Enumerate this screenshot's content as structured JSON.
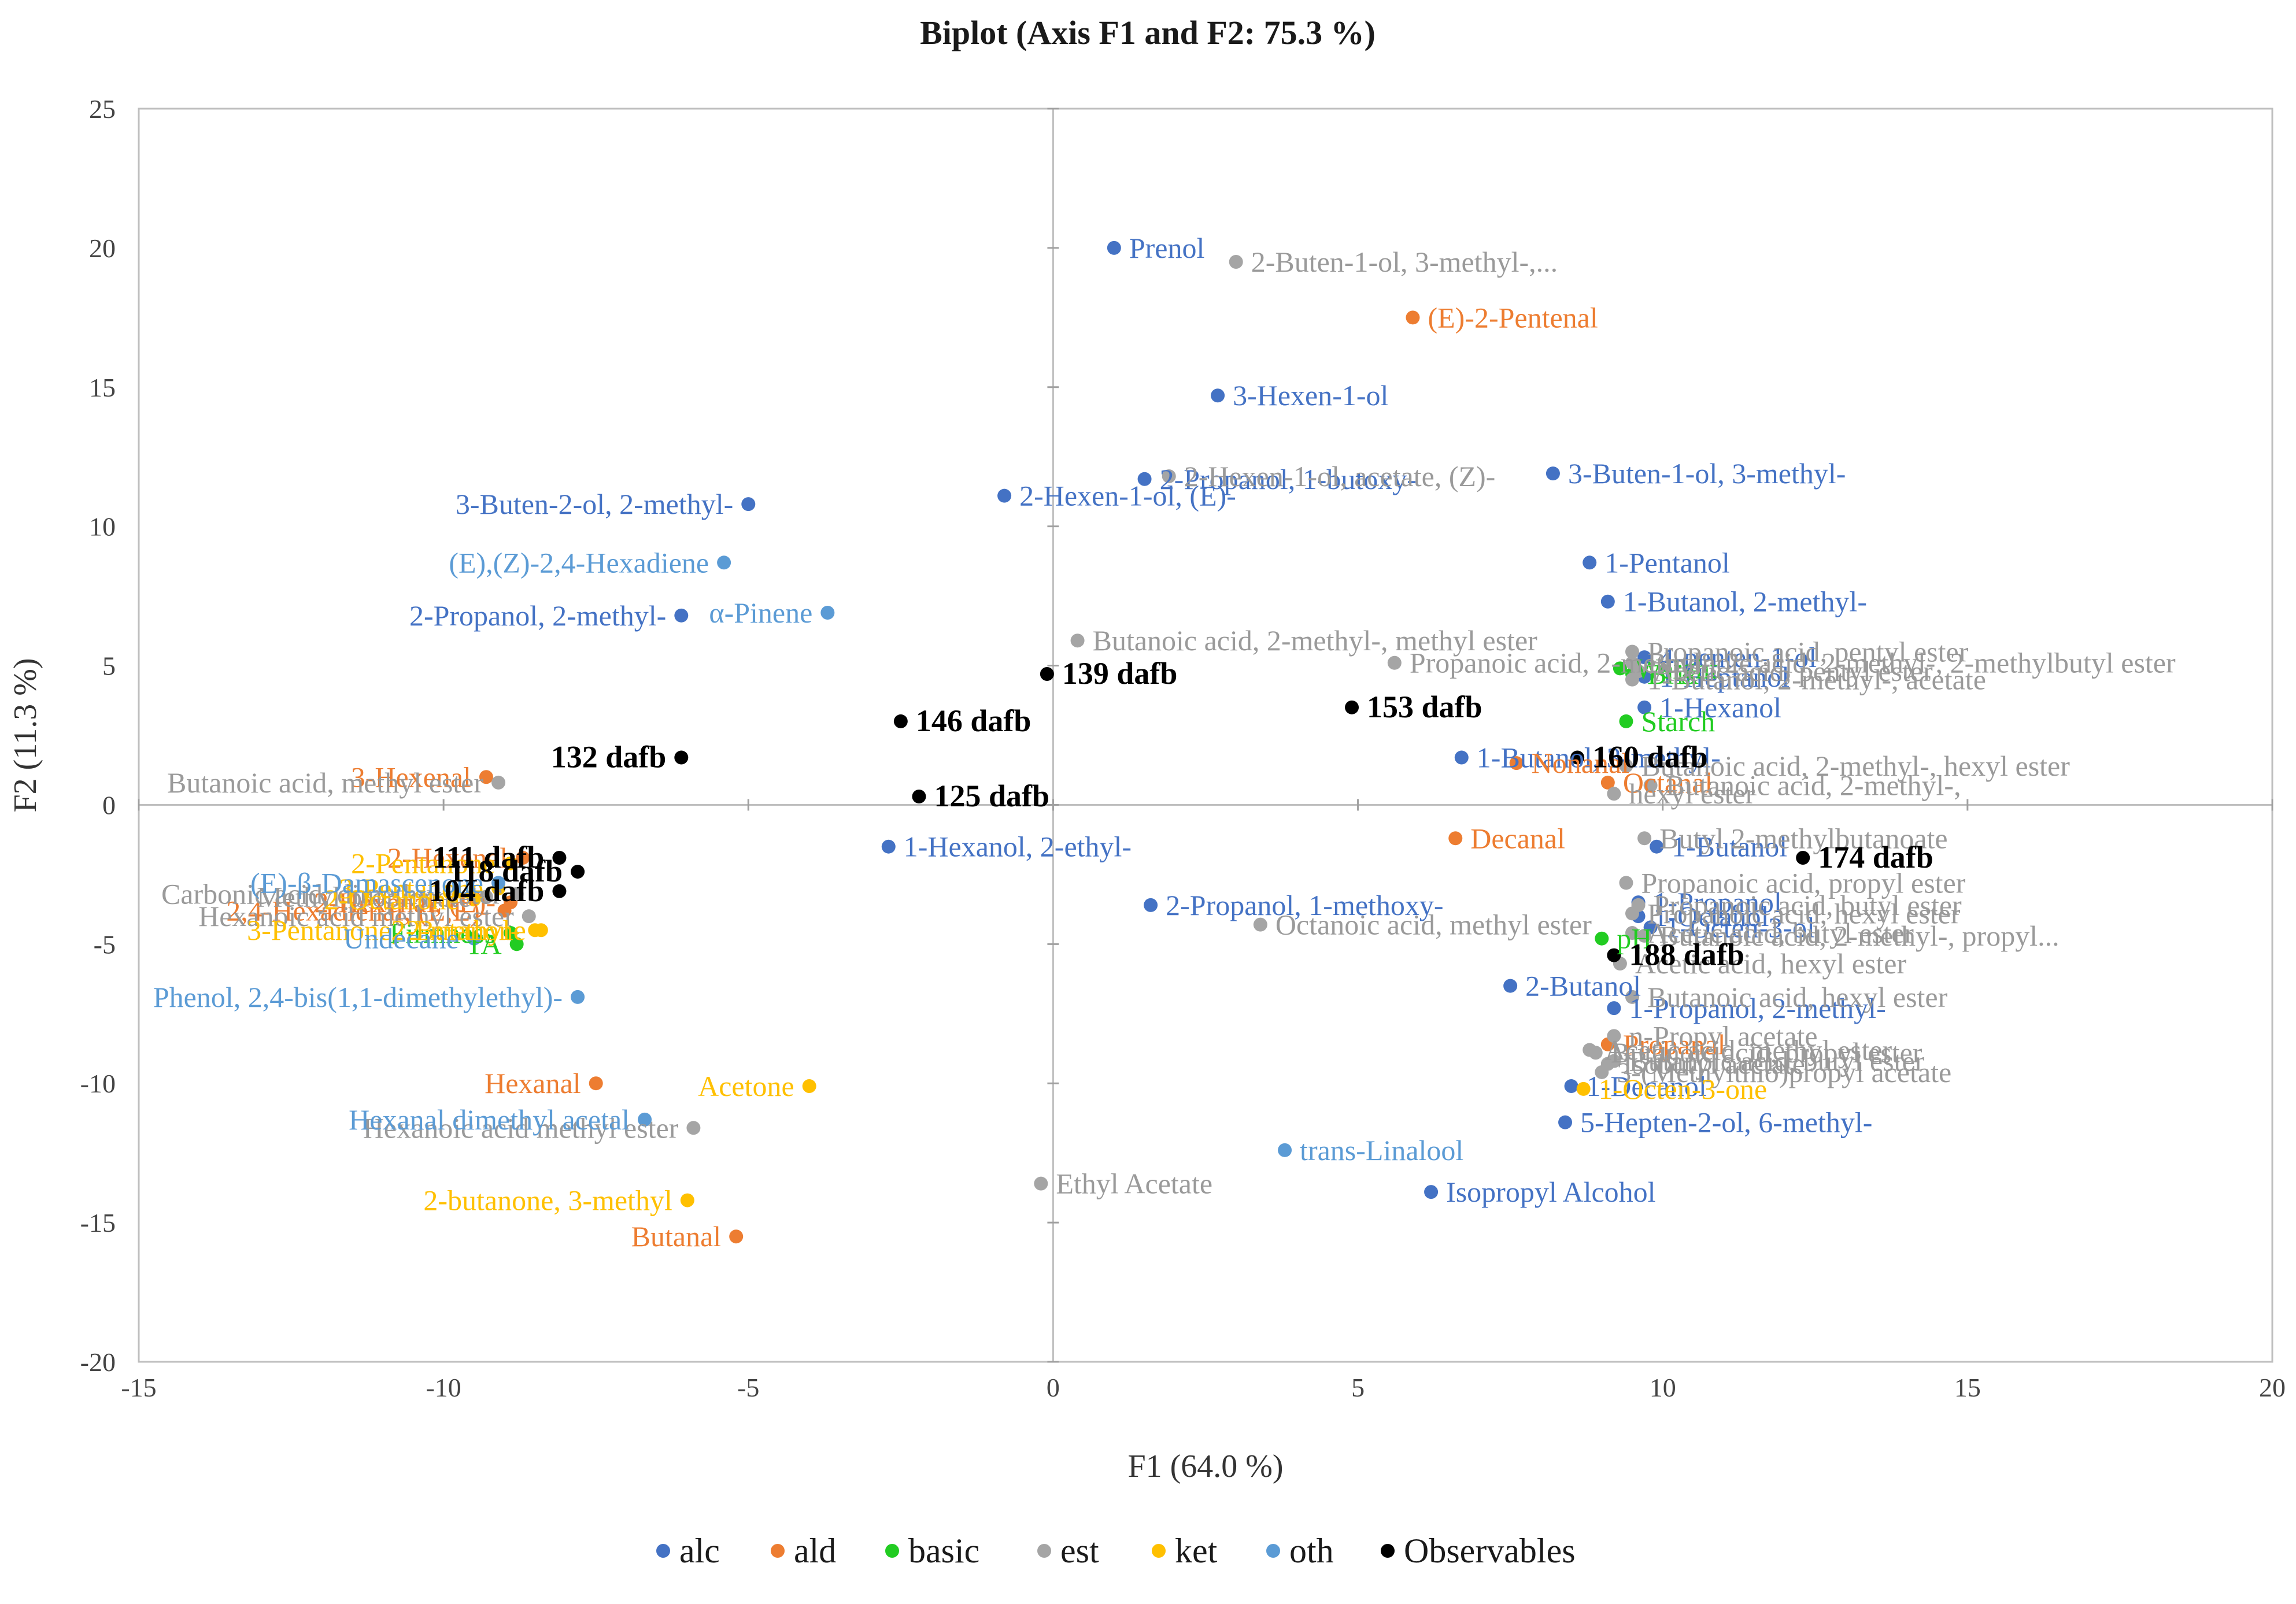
{
  "chart_data": {
    "type": "scatter",
    "title": "Biplot (Axis F1 and F2: 75.3 %)",
    "xlabel": "F1 (64.0 %)",
    "ylabel": "F2 (11.3 %)",
    "xlim": [
      -15,
      20
    ],
    "ylim": [
      -20,
      25
    ],
    "x_ticks": [
      -15,
      -10,
      -5,
      0,
      5,
      10,
      15,
      20
    ],
    "y_ticks": [
      -20,
      -15,
      -10,
      -5,
      0,
      5,
      10,
      15,
      20,
      25
    ],
    "x_tick_labels": [
      "-15",
      "-10",
      "-5",
      "0",
      "5",
      "10",
      "15",
      "20"
    ],
    "y_tick_labels": [
      "-20",
      "-15",
      "-10",
      "-5",
      "0",
      "5",
      "10",
      "15",
      "20",
      "25"
    ],
    "legend_position": "bottom",
    "series": [
      {
        "name": "alc",
        "color": "#4472C4",
        "points": [
          {
            "x": 1.0,
            "y": 20.0,
            "label": "Prenol"
          },
          {
            "x": 2.7,
            "y": 14.7,
            "label": "3-Hexen-1-ol"
          },
          {
            "x": -0.8,
            "y": 11.1,
            "label": "2-Hexen-1-ol, (E)-"
          },
          {
            "x": -5.0,
            "y": 10.8,
            "label": "3-Buten-2-ol, 2-methyl-"
          },
          {
            "x": 1.5,
            "y": 11.7,
            "label": "2-Propanol, 1-butoxy-"
          },
          {
            "x": 8.2,
            "y": 11.9,
            "label": "3-Buten-1-ol, 3-methyl-"
          },
          {
            "x": -6.1,
            "y": 6.8,
            "label": "2-Propanol, 2-methyl-"
          },
          {
            "x": 8.8,
            "y": 8.7,
            "label": "1-Pentanol"
          },
          {
            "x": 9.1,
            "y": 7.3,
            "label": "1-Butanol, 2-methyl-"
          },
          {
            "x": 9.7,
            "y": 5.3,
            "label": "4-penten-1-ol"
          },
          {
            "x": 9.7,
            "y": 4.6,
            "label": "1-Heptanol"
          },
          {
            "x": 9.7,
            "y": 3.5,
            "label": "1-Hexanol"
          },
          {
            "x": 6.7,
            "y": 1.7,
            "label": "1-Butanol, 3-methyl-"
          },
          {
            "x": -2.7,
            "y": -1.5,
            "label": "1-Hexanol, 2-ethyl-"
          },
          {
            "x": 1.6,
            "y": -3.6,
            "label": "2-Propanol, 1-methoxy-"
          },
          {
            "x": 9.9,
            "y": -1.5,
            "label": "1-Butanol"
          },
          {
            "x": 9.6,
            "y": -3.5,
            "label": "1-Propanol"
          },
          {
            "x": 9.6,
            "y": -4.0,
            "label": "1-Octanol"
          },
          {
            "x": 9.8,
            "y": -4.4,
            "label": "1-Octen-3-ol"
          },
          {
            "x": 7.5,
            "y": -6.5,
            "label": "2-Butanol"
          },
          {
            "x": 9.2,
            "y": -7.3,
            "label": "1-Propanol, 2-methyl-"
          },
          {
            "x": 8.5,
            "y": -10.1,
            "label": "1-Decanol"
          },
          {
            "x": 8.4,
            "y": -11.4,
            "label": "5-Hepten-2-ol, 6-methyl-"
          },
          {
            "x": 6.2,
            "y": -13.9,
            "label": "Isopropyl Alcohol"
          }
        ]
      },
      {
        "name": "ald",
        "color": "#ED7D31",
        "points": [
          {
            "x": 5.9,
            "y": 17.5,
            "label": "(E)-2-Pentenal"
          },
          {
            "x": -9.3,
            "y": 1.0,
            "label": "3-Hexenal"
          },
          {
            "x": -8.7,
            "y": -1.9,
            "label": "2-Hexenal"
          },
          {
            "x": -9.0,
            "y": -3.8,
            "label": "2,4-Hexadienal, (E,E)-"
          },
          {
            "x": -8.9,
            "y": -3.5,
            "label": "2-Hexenal, (E)-"
          },
          {
            "x": 7.6,
            "y": 1.5,
            "label": "Nonanal"
          },
          {
            "x": 9.1,
            "y": 0.8,
            "label": "Octanal"
          },
          {
            "x": 6.6,
            "y": -1.2,
            "label": "Decanal"
          },
          {
            "x": 9.1,
            "y": -8.6,
            "label": "Propanal"
          },
          {
            "x": -7.5,
            "y": -10.0,
            "label": "Hexanal"
          },
          {
            "x": -5.2,
            "y": -15.5,
            "label": "Butanal"
          }
        ]
      },
      {
        "name": "basic",
        "color": "#22CC22",
        "points": [
          {
            "x": 9.3,
            "y": 4.9,
            "label": "Weight"
          },
          {
            "x": 9.5,
            "y": 4.7,
            "label": "Brix"
          },
          {
            "x": 9.4,
            "y": 3.0,
            "label": "Starch"
          },
          {
            "x": 9.0,
            "y": -4.8,
            "label": "pH"
          },
          {
            "x": -8.8,
            "y": -5.0,
            "label": "TA"
          },
          {
            "x": -8.9,
            "y": -4.6,
            "label": "Firmness"
          }
        ]
      },
      {
        "name": "est",
        "color": "#A5A5A5",
        "points": [
          {
            "x": 3.0,
            "y": 19.5,
            "label": "2-Buten-1-ol, 3-methyl-,..."
          },
          {
            "x": 1.9,
            "y": 11.8,
            "label": "2-Hexen-1-ol, acetate, (Z)-"
          },
          {
            "x": 5.6,
            "y": 5.1,
            "label": "Propanoic acid, 2-methyl-, 2-..."
          },
          {
            "x": 0.4,
            "y": 5.9,
            "label": "Butanoic acid, 2-methyl-, methyl ester"
          },
          {
            "x": -9.1,
            "y": 0.8,
            "label": "Butanoic acid, methyl ester"
          },
          {
            "x": 9.5,
            "y": 5.5,
            "label": "Propanoic acid, pentyl ester"
          },
          {
            "x": 9.5,
            "y": 5.1,
            "label": "Butanoic acid, 2-methyl-, 2-methylbutyl ester"
          },
          {
            "x": 9.6,
            "y": 4.8,
            "label": "Acetic acid, pentyl ester"
          },
          {
            "x": 9.5,
            "y": 4.5,
            "label": "1-Butanol, 2-methyl-, acetate"
          },
          {
            "x": 9.4,
            "y": 1.4,
            "label": "Butanoic acid, 2-methyl-, hexyl ester"
          },
          {
            "x": 9.8,
            "y": 0.7,
            "label": "Butanoic acid, 2-methyl-,"
          },
          {
            "x": 9.2,
            "y": 0.4,
            "label": "hexyl ester"
          },
          {
            "x": -9.3,
            "y": -3.3,
            "label": "Methyl propionate"
          },
          {
            "x": -8.8,
            "y": -3.2,
            "label": "Carbonic acid, dimethyl ester"
          },
          {
            "x": -8.6,
            "y": -4.0,
            "label": "Hexanoic acid methyl ester"
          },
          {
            "x": 3.4,
            "y": -4.3,
            "label": "Octanoic acid, methyl ester"
          },
          {
            "x": -5.9,
            "y": -11.6,
            "label": "Hexanoic acid methyl ester"
          },
          {
            "x": -0.2,
            "y": -13.6,
            "label": "Ethyl Acetate"
          },
          {
            "x": 9.7,
            "y": -1.2,
            "label": "Butyl 2-methylbutanoate"
          },
          {
            "x": 9.4,
            "y": -2.8,
            "label": "Propanoic acid, propyl ester"
          },
          {
            "x": 9.6,
            "y": -3.6,
            "label": "Propanoic acid, butyl ester"
          },
          {
            "x": 9.5,
            "y": -3.9,
            "label": "Propanoic acid, hexyl ester"
          },
          {
            "x": 9.5,
            "y": -4.6,
            "label": "Acetic acid, butyl ester"
          },
          {
            "x": 9.7,
            "y": -4.7,
            "label": "Butanoic acid, 2-methyl-, propyl..."
          },
          {
            "x": 9.3,
            "y": -5.7,
            "label": "Acetic acid, hexyl ester"
          },
          {
            "x": 9.5,
            "y": -6.9,
            "label": "Butanoic acid, hexyl ester"
          },
          {
            "x": 9.2,
            "y": -8.3,
            "label": "n-Propyl acetate"
          },
          {
            "x": 8.9,
            "y": -8.9,
            "label": "Butanoic acid, propyl ester"
          },
          {
            "x": 9.2,
            "y": -9.2,
            "label": "Butanoic acid, butyl ester"
          },
          {
            "x": 9.0,
            "y": -9.6,
            "label": "3-(Methylthio)propyl acetate"
          },
          {
            "x": 8.8,
            "y": -8.8,
            "label": "Acetic acid, methyl ester"
          },
          {
            "x": 9.1,
            "y": -9.3,
            "label": "Isobutyl acetate"
          }
        ]
      },
      {
        "name": "ket",
        "color": "#FFC000",
        "points": [
          {
            "x": -8.9,
            "y": -2.1,
            "label": "2-Pentanone"
          },
          {
            "x": -9.1,
            "y": -3.0,
            "label": "3-Pentanone"
          },
          {
            "x": -9.5,
            "y": -3.4,
            "label": "2-Octanone"
          },
          {
            "x": -8.4,
            "y": -4.5,
            "label": "2-Butanone"
          },
          {
            "x": -8.5,
            "y": -4.5,
            "label": "3-Pentanone, 2-methyl-"
          },
          {
            "x": -4.0,
            "y": -10.1,
            "label": "Acetone"
          },
          {
            "x": 8.7,
            "y": -10.2,
            "label": "1-Octen-3-one"
          },
          {
            "x": -6.0,
            "y": -14.2,
            "label": "2-butanone, 3-methyl"
          }
        ]
      },
      {
        "name": "oth",
        "color": "#5B9BD5",
        "points": [
          {
            "x": -5.4,
            "y": 8.7,
            "label": "(E),(Z)-2,4-Hexadiene"
          },
          {
            "x": -3.7,
            "y": 6.9,
            "label": "α-Pinene"
          },
          {
            "x": -9.1,
            "y": -2.8,
            "label": "(E)-β-Damascenone"
          },
          {
            "x": -9.5,
            "y": -4.8,
            "label": "Undecane"
          },
          {
            "x": -7.8,
            "y": -6.9,
            "label": "Phenol, 2,4-bis(1,1-dimethylethyl)-"
          },
          {
            "x": -6.7,
            "y": -11.3,
            "label": "Hexanal dimethyl acetal"
          },
          {
            "x": 3.8,
            "y": -12.4,
            "label": "trans-Linalool"
          }
        ]
      },
      {
        "name": "Observables",
        "color": "#000000",
        "points": [
          {
            "x": -0.1,
            "y": 4.7,
            "label": "139 dafb"
          },
          {
            "x": -2.5,
            "y": 3.0,
            "label": "146 dafb"
          },
          {
            "x": -6.1,
            "y": 1.7,
            "label": "132 dafb"
          },
          {
            "x": -2.2,
            "y": 0.3,
            "label": "125 dafb"
          },
          {
            "x": 4.9,
            "y": 3.5,
            "label": "153 dafb"
          },
          {
            "x": 8.6,
            "y": 1.7,
            "label": "160 dafb"
          },
          {
            "x": 12.3,
            "y": -1.9,
            "label": "174 dafb"
          },
          {
            "x": -8.1,
            "y": -1.9,
            "label": "111 dafb"
          },
          {
            "x": -7.8,
            "y": -2.4,
            "label": "118 dafb"
          },
          {
            "x": -8.1,
            "y": -3.1,
            "label": "104 dafb"
          },
          {
            "x": 9.2,
            "y": -5.4,
            "label": "188 dafb"
          }
        ]
      }
    ]
  }
}
